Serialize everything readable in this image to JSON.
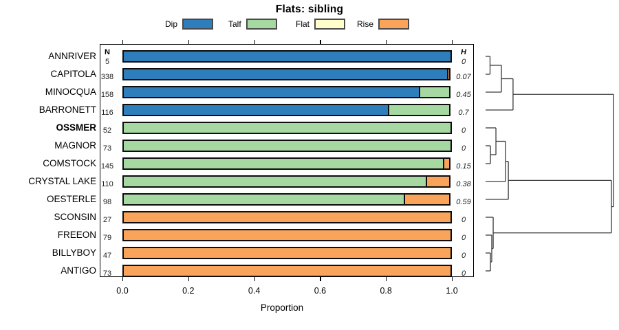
{
  "title": "Flats: sibling",
  "xlabel": "Proportion",
  "columns": {
    "n_header": "N",
    "h_header": "H"
  },
  "x_tick_labels": [
    "0.0",
    "0.2",
    "0.4",
    "0.6",
    "0.8",
    "1.0"
  ],
  "colors": {
    "Dip": "#2E7EBC",
    "Talf": "#A6D8A2",
    "Flat": "#FFFFCC",
    "Rise": "#F9A45A"
  },
  "legend": [
    {
      "label": "Dip",
      "color": "#2E7EBC"
    },
    {
      "label": "Talf",
      "color": "#A6D8A2"
    },
    {
      "label": "Flat",
      "color": "#FFFFCC"
    },
    {
      "label": "Rise",
      "color": "#F9A45A"
    }
  ],
  "chart_data": {
    "type": "bar",
    "stacked": true,
    "orientation": "horizontal",
    "title": "Flats: sibling",
    "xlabel": "Proportion",
    "xlim": [
      0,
      1
    ],
    "x_ticks": [
      0.0,
      0.2,
      0.4,
      0.6,
      0.8,
      1.0
    ],
    "categories": [
      "ANNRIVER",
      "CAPITOLA",
      "MINOCQUA",
      "BARRONETT",
      "OSSMER",
      "MAGNOR",
      "COMSTOCK",
      "CRYSTAL LAKE",
      "OESTERLE",
      "SCONSIN",
      "FREEON",
      "BILLYBOY",
      "ANTIGO"
    ],
    "bold_categories": [
      "OSSMER"
    ],
    "n_values": [
      5,
      338,
      158,
      116,
      52,
      73,
      145,
      110,
      98,
      27,
      79,
      47,
      73
    ],
    "h_values": [
      "0",
      "0.07",
      "0.45",
      "0.7",
      "0",
      "0",
      "0.15",
      "0.38",
      "0.59",
      "0",
      "0",
      "0",
      "0"
    ],
    "series": [
      {
        "name": "Dip",
        "values": [
          1,
          0.99,
          0.905,
          0.81,
          0,
          0,
          0,
          0,
          0,
          0,
          0,
          0,
          0
        ]
      },
      {
        "name": "Talf",
        "values": [
          0,
          0,
          0.095,
          0.19,
          1,
          1,
          0.978,
          0.925,
          0.857,
          0,
          0,
          0,
          0
        ]
      },
      {
        "name": "Flat",
        "values": [
          0,
          0,
          0,
          0,
          0,
          0,
          0,
          0,
          0,
          0,
          0,
          0,
          0
        ]
      },
      {
        "name": "Rise",
        "values": [
          0,
          0.01,
          0,
          0,
          0,
          0,
          0.022,
          0.075,
          0.143,
          1,
          1,
          1,
          1
        ]
      }
    ]
  },
  "dendrogram": {
    "description": "hierarchical clustering of sites, leaves aligned with bar rows, heights as fraction of dendrogram width",
    "tree": {
      "h": 0.995,
      "children": [
        {
          "h": 0.226,
          "children": [
            {
              "h": 0.137,
              "children": [
                {
                  "h": 0.05,
                  "children": [
                    {
                      "leaf": "ANNRIVER"
                    },
                    {
                      "leaf": "CAPITOLA"
                    }
                  ]
                },
                {
                  "leaf": "MINOCQUA"
                }
              ]
            },
            {
              "leaf": "BARRONETT"
            }
          ]
        },
        {
          "h": 0.979,
          "children": [
            {
              "h": 0.19,
              "children": [
                {
                  "h": 0.168,
                  "children": [
                    {
                      "h": 0.095,
                      "children": [
                        {
                          "leaf": "OSSMER"
                        },
                        {
                          "h": 0.053,
                          "children": [
                            {
                              "leaf": "MAGNOR"
                            },
                            {
                              "leaf": "COMSTOCK"
                            }
                          ]
                        }
                      ]
                    },
                    {
                      "leaf": "CRYSTAL LAKE"
                    }
                  ]
                },
                {
                  "leaf": "OESTERLE"
                }
              ]
            },
            {
              "h": 0.074,
              "children": [
                {
                  "leaf": "SCONSIN"
                },
                {
                  "h": 0.063,
                  "children": [
                    {
                      "leaf": "FREEON"
                    },
                    {
                      "h": 0.053,
                      "children": [
                        {
                          "leaf": "BILLYBOY"
                        },
                        {
                          "leaf": "ANTIGO"
                        }
                      ]
                    }
                  ]
                }
              ]
            }
          ]
        }
      ]
    }
  }
}
